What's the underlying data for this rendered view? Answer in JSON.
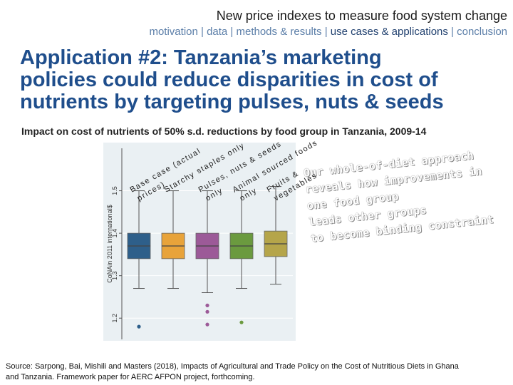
{
  "header": {
    "deck_title": "New price indexes to measure food system change",
    "breadcrumb": {
      "before": "motivation | data | methods & results | ",
      "active": "use cases & applications",
      "after": " | conclusion"
    }
  },
  "slide": {
    "title_lines": [
      "Application #2: Tanzania’s marketing",
      "policies could reduce disparities in cost of",
      "nutrients by targeting pulses, nuts & seeds"
    ],
    "subtitle": "Impact on cost of nutrients of 50% s.d. reductions by food group in Tanzania, 2009-14"
  },
  "callout": {
    "lines": [
      "Our whole-of-diet approach",
      "reveals how improvements in",
      "one food group",
      "leads other groups",
      "to become binding constraint"
    ]
  },
  "source_note": "Source: Sarpong, Bai, Mishili and Masters (2018), Impacts of Agricultural and Trade Policy on the Cost of Nutritious Diets in Ghana and Tanzania. Framework paper for AERC AFPON project, forthcoming.",
  "colors": {
    "accent": "#1f4e8c",
    "box_fill": "#2e5f8a"
  },
  "chart_data": {
    "type": "box",
    "ylabel": "CoNAin 2011 international$",
    "ylim": [
      1.15,
      1.6
    ],
    "yticks": [
      1.2,
      1.3,
      1.4,
      1.5
    ],
    "ytick_labels": [
      "1.2",
      "1.3",
      "1.4",
      "1.5"
    ],
    "series": [
      {
        "name": "Base case (actual prices)",
        "label_lines": [
          "Base case (actual",
          "prices)"
        ],
        "color": "#2e5f8a",
        "q1": 1.34,
        "median": 1.37,
        "q3": 1.4,
        "whisker_low": 1.27,
        "whisker_high": 1.5,
        "outliers": [
          1.18
        ]
      },
      {
        "name": "Starchy staples only",
        "label_lines": [
          "Starchy staples only"
        ],
        "color": "#e8a33a",
        "q1": 1.34,
        "median": 1.37,
        "q3": 1.4,
        "whisker_low": 1.27,
        "whisker_high": 1.5,
        "outliers": []
      },
      {
        "name": "Pulses, nuts & seeds only",
        "label_lines": [
          "Pulses, nuts & seeds",
          "only"
        ],
        "color": "#9c5a98",
        "q1": 1.34,
        "median": 1.37,
        "q3": 1.4,
        "whisker_low": 1.26,
        "whisker_high": 1.5,
        "outliers": [
          1.23,
          1.215,
          1.185
        ]
      },
      {
        "name": "Animal sourced foods only",
        "label_lines": [
          "Animal sourced foods",
          "only"
        ],
        "color": "#6b9a3f",
        "q1": 1.34,
        "median": 1.37,
        "q3": 1.4,
        "whisker_low": 1.27,
        "whisker_high": 1.5,
        "outliers": [
          1.19
        ]
      },
      {
        "name": "Fruits & vegetables",
        "label_lines": [
          "Fruits &",
          "vegetables"
        ],
        "color": "#b5a54a",
        "q1": 1.345,
        "median": 1.375,
        "q3": 1.405,
        "whisker_low": 1.28,
        "whisker_high": 1.51,
        "outliers": []
      }
    ]
  }
}
